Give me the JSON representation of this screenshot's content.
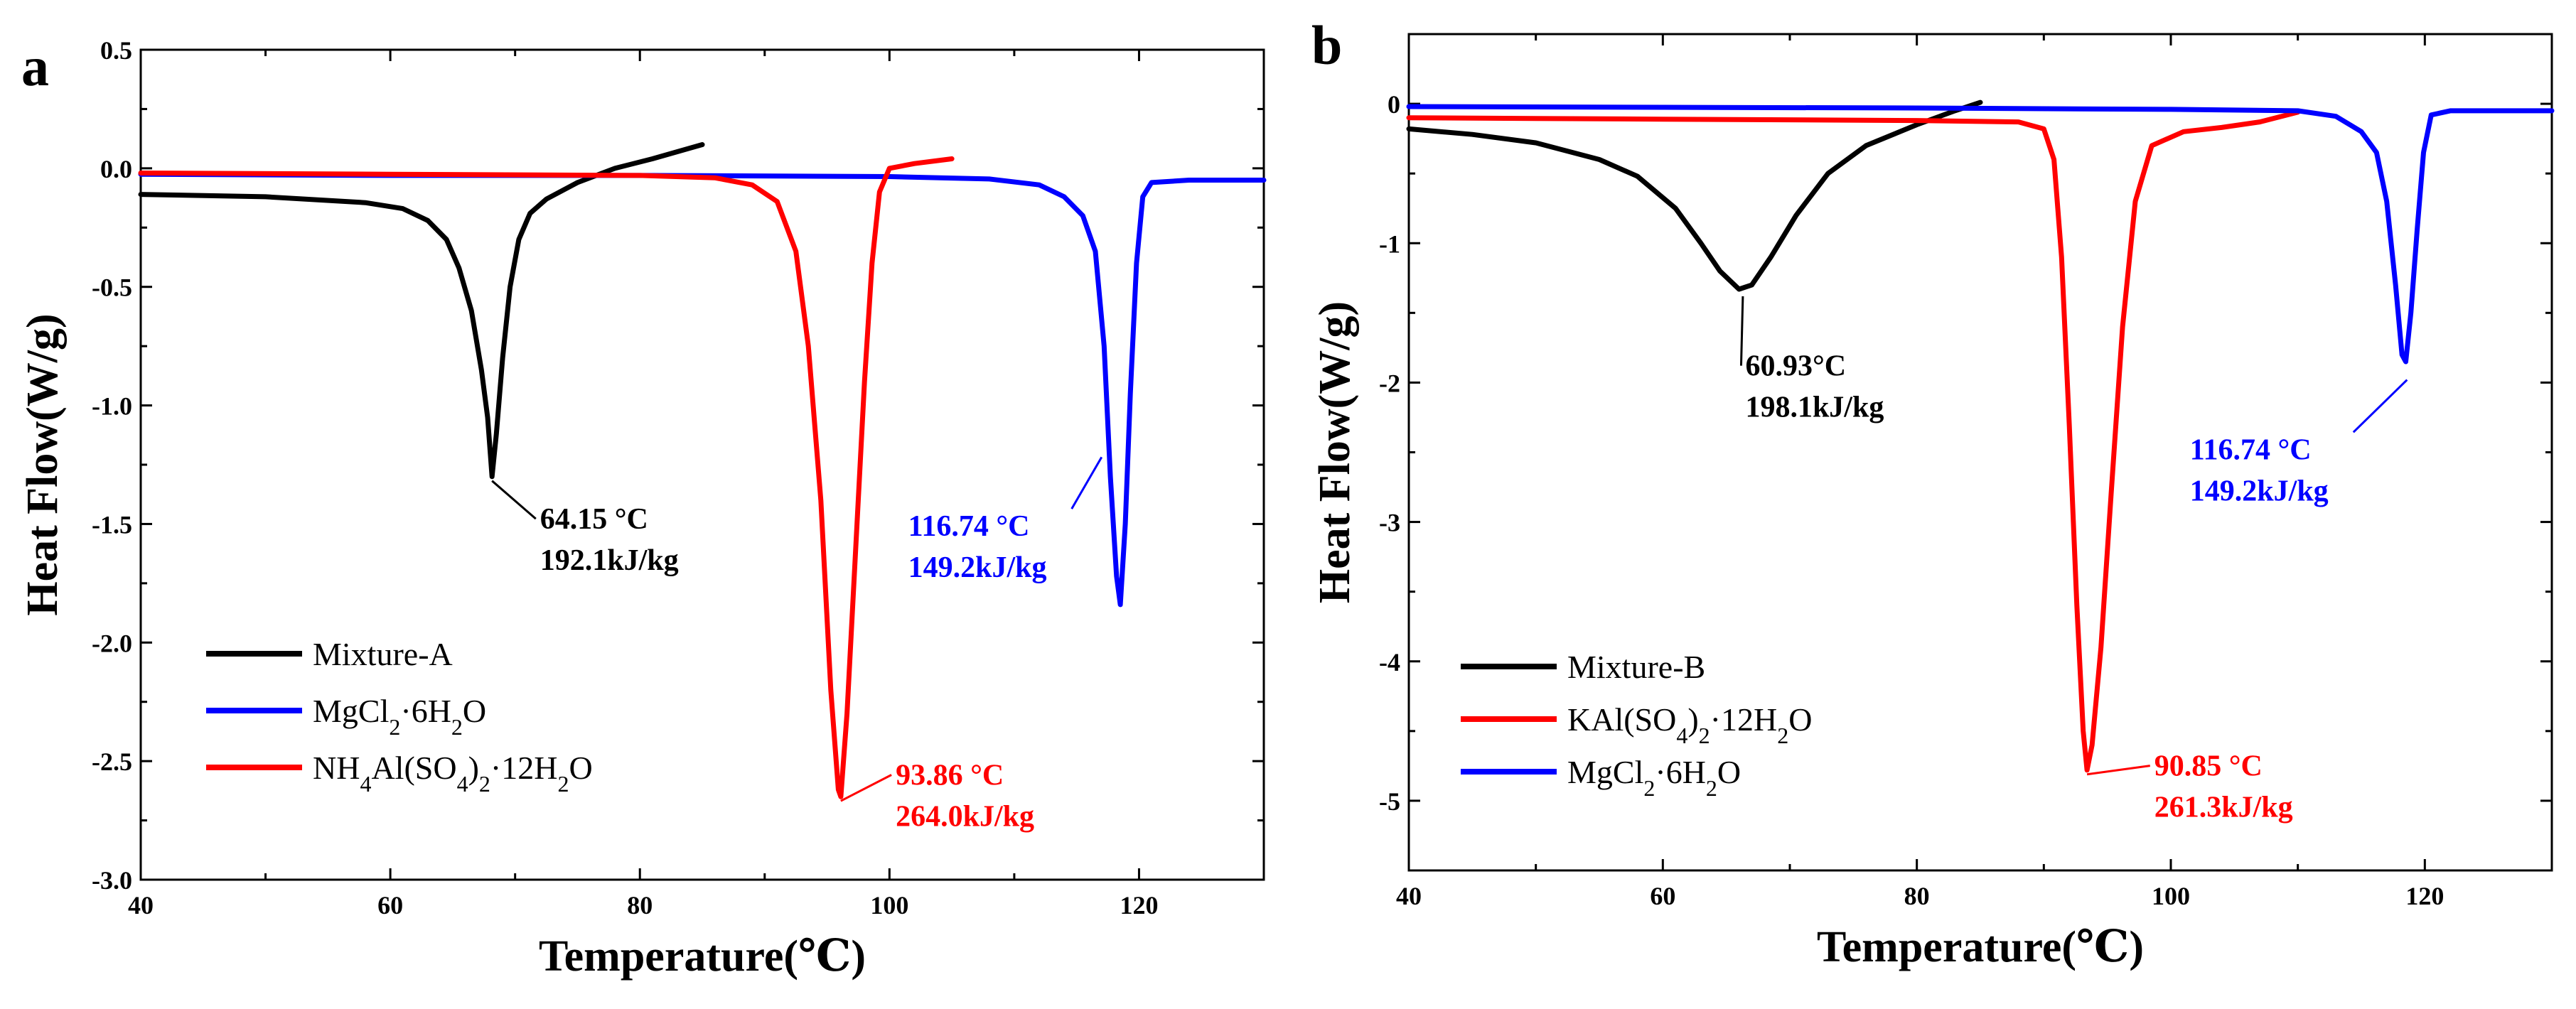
{
  "chart_data": [
    {
      "panel_label": "a",
      "type": "line",
      "xlabel": "Temperature(℃)",
      "ylabel": "Heat Flow(W/g)",
      "xlim": [
        40,
        130
      ],
      "ylim": [
        -3.0,
        0.5
      ],
      "x_ticks": [
        40,
        60,
        80,
        100,
        120
      ],
      "x_minor_step": 10,
      "x_tick_labels": [
        "40",
        "60",
        "80",
        "100",
        "120"
      ],
      "y_ticks": [
        0.5,
        0.0,
        -0.5,
        -1.0,
        -1.5,
        -2.0,
        -2.5,
        -3.0
      ],
      "y_tick_labels": [
        "0.5",
        "0.0",
        "-0.5",
        "-1.0",
        "-1.5",
        "-2.0",
        "-2.5",
        "-3.0"
      ],
      "y_minor_step": 0.25,
      "legend_position": "bottom-left",
      "series": [
        {
          "name": "Mixture-A",
          "legend_html": "Mixture-A",
          "color": "#000000",
          "points": [
            [
              40,
              -0.11
            ],
            [
              50,
              -0.12
            ],
            [
              58,
              -0.145
            ],
            [
              61,
              -0.17
            ],
            [
              63,
              -0.22
            ],
            [
              64.5,
              -0.3
            ],
            [
              65.5,
              -0.42
            ],
            [
              66.5,
              -0.6
            ],
            [
              67.3,
              -0.85
            ],
            [
              67.8,
              -1.05
            ],
            [
              68.15,
              -1.3
            ],
            [
              68.5,
              -1.12
            ],
            [
              69,
              -0.8
            ],
            [
              69.6,
              -0.5
            ],
            [
              70.3,
              -0.3
            ],
            [
              71.2,
              -0.19
            ],
            [
              72.5,
              -0.13
            ],
            [
              75,
              -0.06
            ],
            [
              78,
              0.0
            ],
            [
              81,
              0.04
            ],
            [
              85,
              0.1
            ]
          ]
        },
        {
          "name": "MgCl2·6H2O",
          "legend_html": "MgCl<tspan baseline-shift='sub' font-size='32'>2</tspan>·6H<tspan baseline-shift='sub' font-size='32'>2</tspan>O",
          "color": "#0000ff",
          "points": [
            [
              40,
              -0.025
            ],
            [
              60,
              -0.03
            ],
            [
              80,
              -0.03
            ],
            [
              100,
              -0.035
            ],
            [
              108,
              -0.045
            ],
            [
              112,
              -0.07
            ],
            [
              114,
              -0.12
            ],
            [
              115.5,
              -0.2
            ],
            [
              116.5,
              -0.35
            ],
            [
              117.2,
              -0.75
            ],
            [
              117.7,
              -1.3
            ],
            [
              118.2,
              -1.72
            ],
            [
              118.5,
              -1.84
            ],
            [
              118.9,
              -1.5
            ],
            [
              119.3,
              -0.95
            ],
            [
              119.8,
              -0.4
            ],
            [
              120.3,
              -0.12
            ],
            [
              121,
              -0.06
            ],
            [
              124,
              -0.05
            ],
            [
              130,
              -0.05
            ]
          ]
        },
        {
          "name": "NH4Al(SO4)2·12H2O",
          "legend_html": "NH<tspan baseline-shift='sub' font-size='32'>4</tspan>Al(SO<tspan baseline-shift='sub' font-size='32'>4</tspan>)<tspan baseline-shift='sub' font-size='32'>2</tspan>·12H<tspan baseline-shift='sub' font-size='32'>2</tspan>O",
          "color": "#ff0000",
          "points": [
            [
              40,
              -0.02
            ],
            [
              60,
              -0.025
            ],
            [
              80,
              -0.03
            ],
            [
              86,
              -0.04
            ],
            [
              89,
              -0.07
            ],
            [
              91,
              -0.14
            ],
            [
              92.5,
              -0.35
            ],
            [
              93.5,
              -0.75
            ],
            [
              94.5,
              -1.4
            ],
            [
              95.3,
              -2.2
            ],
            [
              95.9,
              -2.62
            ],
            [
              96.1,
              -2.65
            ],
            [
              96.6,
              -2.3
            ],
            [
              97.3,
              -1.6
            ],
            [
              98,
              -0.9
            ],
            [
              98.6,
              -0.4
            ],
            [
              99.2,
              -0.1
            ],
            [
              100,
              0.0
            ],
            [
              102,
              0.02
            ],
            [
              105,
              0.04
            ]
          ]
        }
      ],
      "annotations": [
        {
          "lines": [
            "64.15 °C",
            "192.1kJ/kg"
          ],
          "color": "#000000",
          "point": [
            68.15,
            -1.3
          ],
          "text_anchor": [
            72,
            -1.52
          ]
        },
        {
          "lines": [
            "93.86 °C",
            "264.0kJ/kg"
          ],
          "color": "#ff0000",
          "point": [
            96.1,
            -2.65
          ],
          "text_anchor": [
            100.5,
            -2.6
          ]
        },
        {
          "lines": [
            "116.74 °C",
            "149.2kJ/kg"
          ],
          "color": "#0000ff",
          "point": [
            117,
            -1.2
          ],
          "text_anchor": [
            101.5,
            -1.55
          ]
        }
      ]
    },
    {
      "panel_label": "b",
      "type": "line",
      "xlabel": "Temperature(℃)",
      "ylabel": "Heat Flow(W/g)",
      "xlim": [
        40,
        130
      ],
      "ylim": [
        -5.5,
        0.5
      ],
      "x_ticks": [
        40,
        60,
        80,
        100,
        120
      ],
      "x_minor_step": 10,
      "x_tick_labels": [
        "40",
        "60",
        "80",
        "100",
        "120"
      ],
      "y_ticks": [
        0,
        -1,
        -2,
        -3,
        -4,
        -5
      ],
      "y_tick_labels": [
        "0",
        "-1",
        "-2",
        "-3",
        "-4",
        "-5"
      ],
      "y_minor_step": 0.5,
      "legend_position": "bottom-left",
      "series": [
        {
          "name": "Mixture-B",
          "legend_html": "Mixture-B",
          "color": "#000000",
          "points": [
            [
              40,
              -0.18
            ],
            [
              45,
              -0.22
            ],
            [
              50,
              -0.28
            ],
            [
              55,
              -0.4
            ],
            [
              58,
              -0.52
            ],
            [
              61,
              -0.75
            ],
            [
              63,
              -1.0
            ],
            [
              64.5,
              -1.2
            ],
            [
              66,
              -1.33
            ],
            [
              67,
              -1.3
            ],
            [
              68.5,
              -1.1
            ],
            [
              70.5,
              -0.8
            ],
            [
              73,
              -0.5
            ],
            [
              76,
              -0.3
            ],
            [
              80,
              -0.15
            ],
            [
              83,
              -0.05
            ],
            [
              85,
              0.01
            ]
          ]
        },
        {
          "name": "KAl(SO4)2·12H2O",
          "legend_html": "KAl(SO<tspan baseline-shift='sub' font-size='32'>4</tspan>)<tspan baseline-shift='sub' font-size='32'>2</tspan>·12H<tspan baseline-shift='sub' font-size='32'>2</tspan>O",
          "color": "#ff0000",
          "points": [
            [
              40,
              -0.1
            ],
            [
              60,
              -0.11
            ],
            [
              80,
              -0.12
            ],
            [
              88,
              -0.13
            ],
            [
              90,
              -0.18
            ],
            [
              90.8,
              -0.4
            ],
            [
              91.4,
              -1.1
            ],
            [
              92,
              -2.3
            ],
            [
              92.6,
              -3.6
            ],
            [
              93.1,
              -4.5
            ],
            [
              93.4,
              -4.78
            ],
            [
              93.8,
              -4.6
            ],
            [
              94.5,
              -3.9
            ],
            [
              95.3,
              -2.8
            ],
            [
              96.2,
              -1.6
            ],
            [
              97.2,
              -0.7
            ],
            [
              98.5,
              -0.3
            ],
            [
              101,
              -0.2
            ],
            [
              104,
              -0.17
            ],
            [
              107,
              -0.13
            ],
            [
              110,
              -0.06
            ]
          ]
        },
        {
          "name": "MgCl2·6H2O",
          "legend_html": "MgCl<tspan baseline-shift='sub' font-size='32'>2</tspan>·6H<tspan baseline-shift='sub' font-size='32'>2</tspan>O",
          "color": "#0000ff",
          "points": [
            [
              40,
              -0.02
            ],
            [
              60,
              -0.025
            ],
            [
              80,
              -0.03
            ],
            [
              100,
              -0.04
            ],
            [
              110,
              -0.05
            ],
            [
              113,
              -0.09
            ],
            [
              115,
              -0.2
            ],
            [
              116.2,
              -0.35
            ],
            [
              117,
              -0.7
            ],
            [
              117.7,
              -1.3
            ],
            [
              118.2,
              -1.8
            ],
            [
              118.5,
              -1.85
            ],
            [
              118.9,
              -1.5
            ],
            [
              119.4,
              -0.9
            ],
            [
              119.9,
              -0.35
            ],
            [
              120.5,
              -0.08
            ],
            [
              122,
              -0.05
            ],
            [
              130,
              -0.05
            ]
          ]
        }
      ],
      "annotations": [
        {
          "lines": [
            "60.93°C",
            "198.1kJ/kg"
          ],
          "color": "#000000",
          "point": [
            66.3,
            -1.35
          ],
          "text_anchor": [
            66.5,
            -1.95
          ]
        },
        {
          "lines": [
            "90.85 °C",
            "261.3kJ/kg"
          ],
          "color": "#ff0000",
          "point": [
            93.4,
            -4.78
          ],
          "text_anchor": [
            98.7,
            -4.82
          ]
        },
        {
          "lines": [
            "116.74 °C",
            "149.2kJ/kg"
          ],
          "color": "#0000ff",
          "point": [
            118.6,
            -1.95
          ],
          "text_anchor": [
            101.5,
            -2.55
          ]
        }
      ]
    }
  ]
}
